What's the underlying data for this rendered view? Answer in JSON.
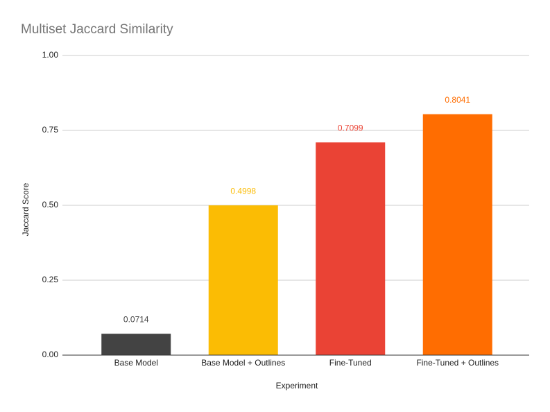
{
  "chart_data": {
    "type": "bar",
    "title": "Multiset Jaccard Similarity",
    "x_label": "Experiment",
    "y_label": "Jaccard Score",
    "categories": [
      "Base Model",
      "Base Model + Outlines",
      "Fine-Tuned",
      "Fine-Tuned + Outlines"
    ],
    "values": [
      0.0714,
      0.4998,
      0.7099,
      0.8041
    ],
    "colors": [
      "#434343",
      "#fbbc04",
      "#ea4335",
      "#ff6d01"
    ],
    "ylim": [
      0,
      1
    ],
    "yticks": [
      {
        "value": 0,
        "label": "0.00"
      },
      {
        "value": 0.25,
        "label": "0.25"
      },
      {
        "value": 0.5,
        "label": "0.50"
      },
      {
        "value": 0.75,
        "label": "0.75"
      },
      {
        "value": 1,
        "label": "1.00"
      }
    ],
    "grid": true
  }
}
